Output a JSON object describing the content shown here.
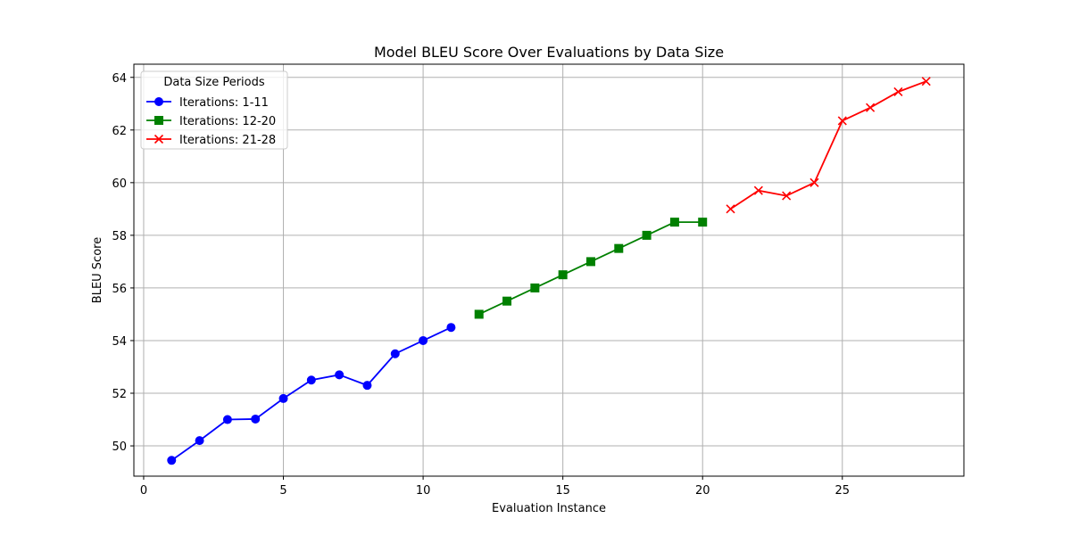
{
  "chart_data": {
    "type": "line",
    "title": "Model BLEU Score Over Evaluations by Data Size",
    "xlabel": "Evaluation Instance",
    "ylabel": "BLEU Score",
    "xlim": [
      -0.35,
      29.35
    ],
    "ylim": [
      48.85,
      64.5
    ],
    "xticks": [
      0,
      5,
      10,
      15,
      20,
      25
    ],
    "yticks": [
      50,
      52,
      54,
      56,
      58,
      60,
      62,
      64
    ],
    "grid": true,
    "legend": {
      "title": "Data Size Periods",
      "placement": "top-left"
    },
    "series": [
      {
        "name": "Iterations: 1-11",
        "color": "#0000ff",
        "marker": "circle",
        "x": [
          1,
          2,
          3,
          4,
          5,
          6,
          7,
          8,
          9,
          10,
          11
        ],
        "y": [
          49.45,
          50.2,
          51.0,
          51.02,
          51.8,
          52.5,
          52.7,
          52.3,
          53.5,
          54.0,
          54.5
        ]
      },
      {
        "name": "Iterations: 12-20",
        "color": "#008000",
        "marker": "square",
        "x": [
          12,
          13,
          14,
          15,
          16,
          17,
          18,
          19,
          20
        ],
        "y": [
          55.0,
          55.5,
          56.0,
          56.5,
          57.0,
          57.5,
          58.0,
          58.5,
          58.5
        ]
      },
      {
        "name": "Iterations: 21-28",
        "color": "#ff0000",
        "marker": "x",
        "x": [
          21,
          22,
          23,
          24,
          25,
          26,
          27,
          28
        ],
        "y": [
          59.0,
          59.7,
          59.5,
          60.0,
          62.35,
          62.85,
          63.45,
          63.85
        ]
      }
    ]
  }
}
